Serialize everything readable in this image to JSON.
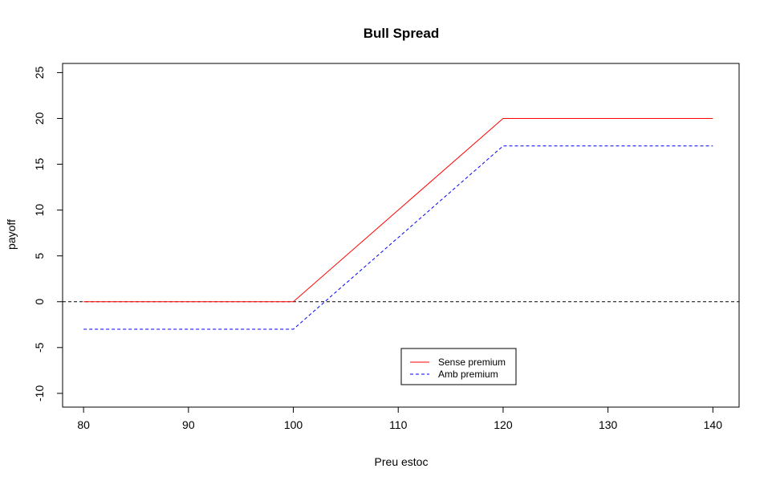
{
  "chart_data": {
    "type": "line",
    "title": "Bull Spread",
    "xlabel": "Preu estoc",
    "ylabel": "payoff",
    "xlim": [
      78,
      142.5
    ],
    "ylim": [
      -11.5,
      26
    ],
    "xticks": [
      80,
      90,
      100,
      110,
      120,
      130,
      140
    ],
    "yticks": [
      -10,
      -5,
      0,
      5,
      10,
      15,
      20,
      25
    ],
    "xtick_labels": [
      "80",
      "90",
      "100",
      "110",
      "120",
      "130",
      "140"
    ],
    "ytick_labels": [
      "-10",
      "-5",
      "0",
      "5",
      "10",
      "15",
      "20",
      "25"
    ],
    "grid": false,
    "legend_position": "bottom-center",
    "reference_line": {
      "y": 0,
      "color": "#000000",
      "style": "dashed"
    },
    "series": [
      {
        "name": "Sense premium",
        "color": "#ff0000",
        "style": "solid",
        "x": [
          80,
          100,
          120,
          140
        ],
        "y": [
          0,
          0,
          20,
          20
        ]
      },
      {
        "name": "Amb premium",
        "color": "#0000ff",
        "style": "dashed",
        "x": [
          80,
          100,
          120,
          140
        ],
        "y": [
          -3,
          -3,
          17,
          17
        ]
      }
    ]
  }
}
